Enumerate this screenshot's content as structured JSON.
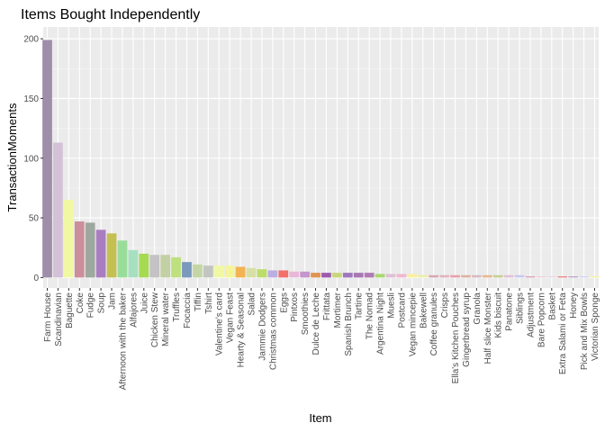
{
  "chart_data": {
    "type": "bar",
    "title": "Items Bought Independently",
    "xlabel": "Item",
    "ylabel": "TransactionMoments",
    "ylim": [
      0,
      210
    ],
    "yticks": [
      0,
      50,
      100,
      150,
      200
    ],
    "grid": true,
    "legend": "none",
    "categories": [
      "Farm House",
      "Scandinavian",
      "Baguette",
      "Coke",
      "Fudge",
      "Soup",
      "Jam",
      "Afternoon with the baker",
      "Alfajores",
      "Juice",
      "Chicken Stew",
      "Mineral water",
      "Truffles",
      "Focaccia",
      "Tiffin",
      "Tshirt",
      "Valentine's card",
      "Vegan Feast",
      "Hearty & Seasonal",
      "Salad",
      "Jammie Dodgers",
      "Christmas common",
      "Eggs",
      "Pintxos",
      "Smoothies",
      "Dulce de Leche",
      "Frittata",
      "Mortimer",
      "Spanish Brunch",
      "Tartine",
      "The Nomad",
      "Argentina Night",
      "Muesli",
      "Postcard",
      "Vegan mincepie",
      "Bakewell",
      "Coffee granules",
      "Crisps",
      "Ella's Kitchen Pouches",
      "Gingerbread syrup",
      "Granola",
      "Half slice Monster",
      "Kids biscuit",
      "Panatone",
      "Siblings",
      "Adjustment",
      "Bare Popcorn",
      "Basket",
      "Extra Salami or Feta",
      "Honey",
      "Pick and Mix Bowls",
      "Victorian Sponge"
    ],
    "values": [
      199,
      113,
      65,
      47,
      46,
      40,
      37,
      31,
      23,
      20,
      19,
      19,
      17,
      13,
      11,
      10,
      10,
      10,
      9,
      8,
      7,
      6,
      6,
      5,
      5,
      4,
      4,
      4,
      4,
      4,
      4,
      3,
      3,
      3,
      3,
      2,
      2,
      2,
      2,
      2,
      2,
      2,
      2,
      2,
      2,
      1,
      1,
      1,
      1,
      1,
      1,
      1
    ],
    "colors": [
      "#9E8EAA",
      "#D3C1D7",
      "#F1F8A4",
      "#CC8E9A",
      "#9FA89F",
      "#A97EC0",
      "#C4C051",
      "#9ADC9A",
      "#A6E0C0",
      "#A6DA52",
      "#C4C2C4",
      "#C2D0A4",
      "#BEE07F",
      "#7A99BC",
      "#C4D6A5",
      "#C3C5C1",
      "#F1F8A4",
      "#F4F49A",
      "#F2B352",
      "#D7DFA6",
      "#BDDD6A",
      "#BAAFE0",
      "#F26F6A",
      "#E8B8D7",
      "#C596CB",
      "#E09352",
      "#9E5BB0",
      "#C8D67A",
      "#9E78BD",
      "#A878B4",
      "#B07BB4",
      "#A8D86E",
      "#E0BFD6",
      "#EFB8CF",
      "#F8F09E",
      "#EDEDA8",
      "#D6A8B0",
      "#DFB3BF",
      "#E8A0A8",
      "#E0B0A0",
      "#D8BAC4",
      "#E6B890",
      "#C4D090",
      "#E0C0D8",
      "#C8C8F0",
      "#D6A0AA",
      "#E8D0D8",
      "#E4D6E0",
      "#E88080",
      "#C0A0C8",
      "#D0D0F0",
      "#F4F0A0"
    ]
  }
}
